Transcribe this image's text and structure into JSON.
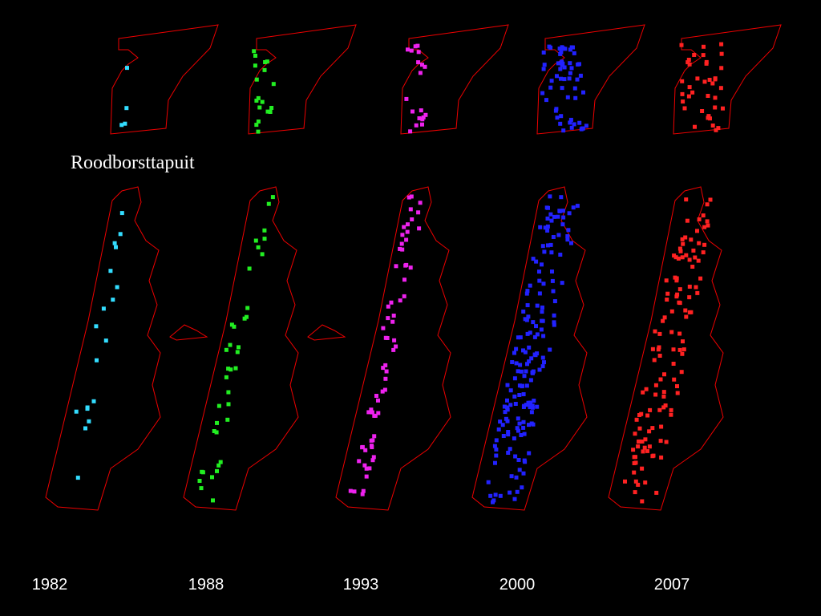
{
  "title": "Roodborsttapuit",
  "maps": [
    {
      "year": "1982",
      "color": "#33ddff"
    },
    {
      "year": "1988",
      "color": "#22ee22"
    },
    {
      "year": "1993",
      "color": "#ee22ee"
    },
    {
      "year": "2000",
      "color": "#2222ff"
    },
    {
      "year": "2007",
      "color": "#ff2222"
    }
  ]
}
